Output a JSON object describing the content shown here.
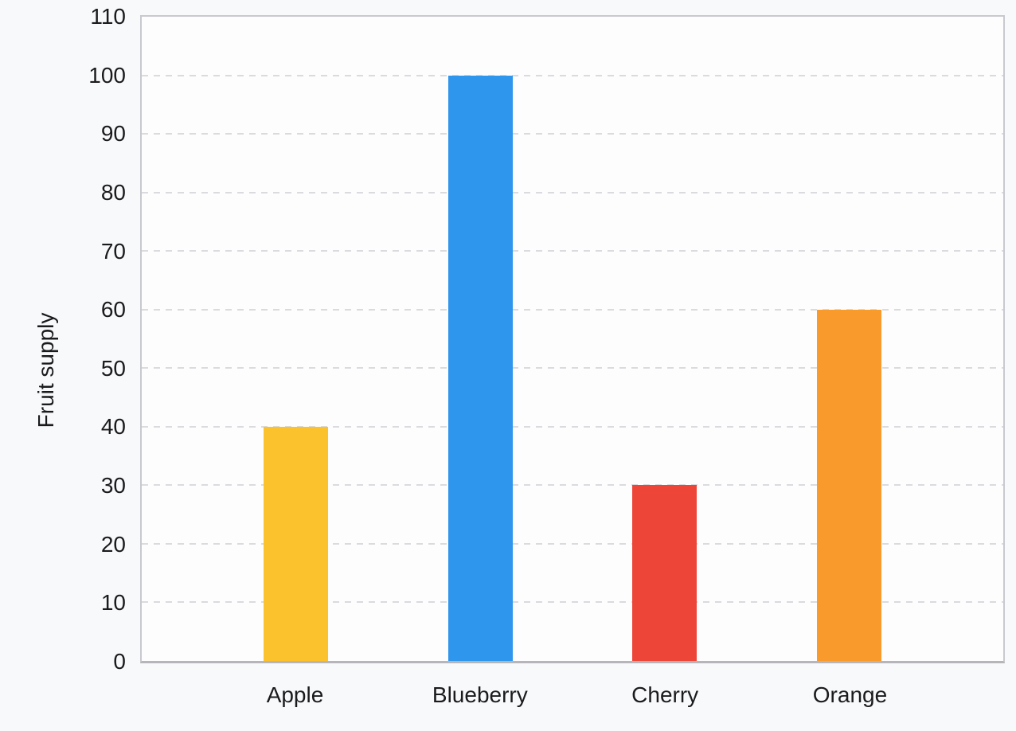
{
  "chart_data": {
    "type": "bar",
    "title": "",
    "categories": [
      "Apple",
      "Blueberry",
      "Cherry",
      "Orange"
    ],
    "values": [
      40,
      100,
      30,
      60
    ],
    "bar_colors": [
      "#FCC22D",
      "#2E96EC",
      "#EE4539",
      "#F99A2C"
    ],
    "xlabel": "",
    "ylabel": "Fruit supply",
    "ylim": [
      0,
      110
    ],
    "yticks": [
      0,
      10,
      20,
      30,
      40,
      50,
      60,
      70,
      80,
      90,
      100,
      110
    ],
    "grid": "horizontal-dashed",
    "legend": "none",
    "plot_border": true
  },
  "colors": {
    "background": "#F8F9FB",
    "plot_background": "#FDFDFE",
    "border": "#C8C9CE",
    "axis_line": "#B5B5BA",
    "gridline": "#DBDBDF",
    "text": "#1B1B1D"
  }
}
